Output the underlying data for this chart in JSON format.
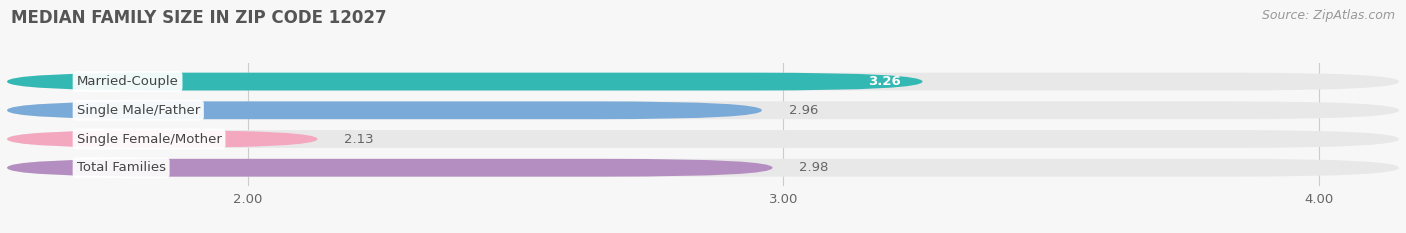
{
  "title": "MEDIAN FAMILY SIZE IN ZIP CODE 12027",
  "source": "Source: ZipAtlas.com",
  "categories": [
    "Married-Couple",
    "Single Male/Father",
    "Single Female/Mother",
    "Total Families"
  ],
  "values": [
    3.26,
    2.96,
    2.13,
    2.98
  ],
  "bar_colors": [
    "#33b8b4",
    "#7aaad8",
    "#f4a8c0",
    "#b48ec0"
  ],
  "bar_bg_color": "#e8e8e8",
  "value_inside": [
    true,
    false,
    false,
    false
  ],
  "value_colors_inside": [
    "#ffffff",
    "#555555",
    "#555555",
    "#555555"
  ],
  "xlim_left": 1.55,
  "xlim_right": 4.15,
  "xticks": [
    2.0,
    3.0,
    4.0
  ],
  "xtick_labels": [
    "2.00",
    "3.00",
    "4.00"
  ],
  "value_label_color": "#666666",
  "title_color": "#555555",
  "source_color": "#999999",
  "bg_color": "#f7f7f7",
  "bar_height": 0.62,
  "label_fontsize": 9.5,
  "title_fontsize": 12,
  "value_fontsize": 9.5,
  "source_fontsize": 9
}
